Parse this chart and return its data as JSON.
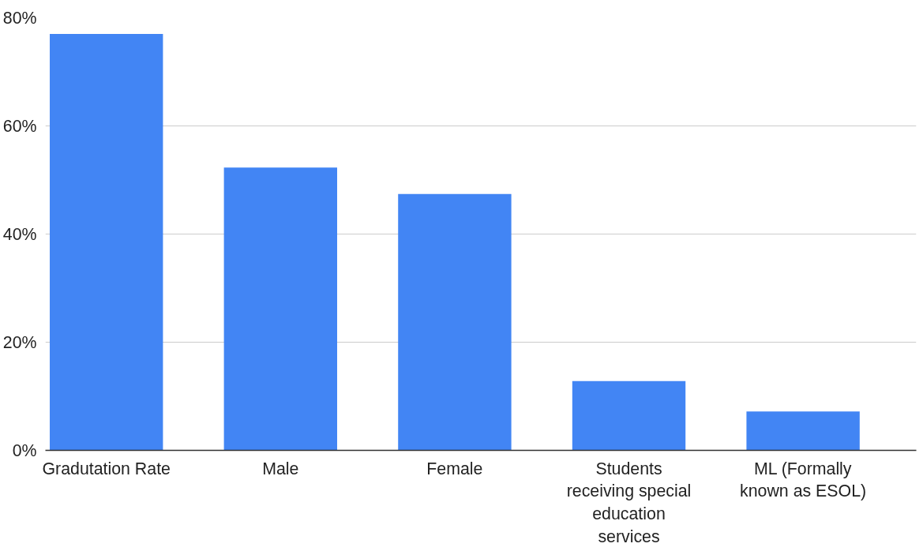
{
  "chart_data": {
    "type": "bar",
    "categories": [
      "Gradutation Rate",
      "Male",
      "Female",
      "Students receiving special education services",
      "ML (Formally known as ESOL)"
    ],
    "values": [
      77,
      52.3,
      47.4,
      12.8,
      7.2
    ],
    "color": "#4285f4",
    "ylim": [
      0,
      80
    ],
    "yticks": [
      {
        "value": 0,
        "label": "0%"
      },
      {
        "value": 20,
        "label": "20%"
      },
      {
        "value": 40,
        "label": "40%"
      },
      {
        "value": 60,
        "label": "60%"
      },
      {
        "value": 80,
        "label": "80%"
      }
    ],
    "grid": "y"
  }
}
